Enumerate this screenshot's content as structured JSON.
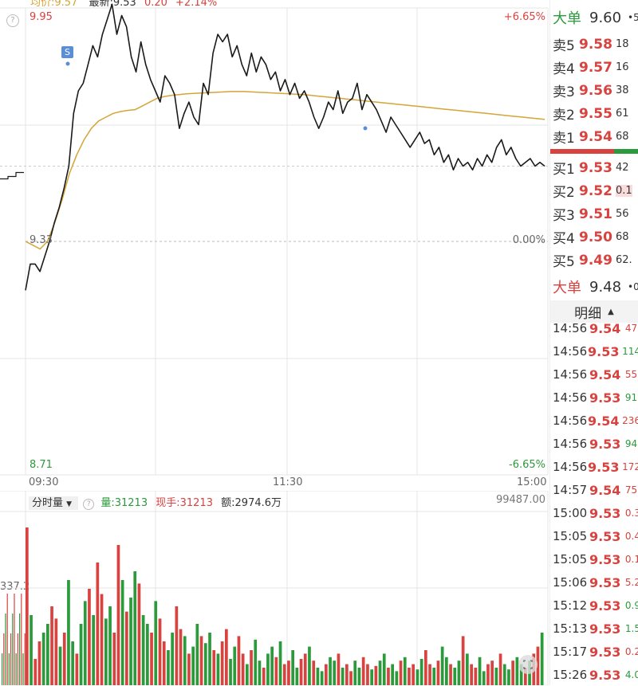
{
  "header": {
    "avg_label": "均价:9.57",
    "latest_label": "最新:9.53",
    "change": "0.20",
    "change_pct": "+2.14%"
  },
  "chart_data": {
    "type": "line",
    "y_top_label": "9.95",
    "y_mid_label": "9.33",
    "y_bottom_label": "8.71",
    "pct_top_label": "+6.65%",
    "pct_mid_label": "0.00%",
    "pct_bottom_label": "-6.65%",
    "ylim": [
      8.71,
      9.95
    ],
    "prev_close": 9.33,
    "x_ticks": [
      "09:30",
      "11:30",
      "15:00"
    ],
    "series": [
      {
        "values": [
          9.2,
          9.27,
          9.27,
          9.25,
          9.29,
          9.33,
          9.38,
          9.42,
          9.47,
          9.53,
          9.67,
          9.73,
          9.75,
          9.8,
          9.85,
          9.82,
          9.88,
          9.92,
          9.96,
          9.88,
          9.93,
          9.9,
          9.82,
          9.78,
          9.86,
          9.8,
          9.76,
          9.73,
          9.7,
          9.77,
          9.75,
          9.72,
          9.63,
          9.67,
          9.7,
          9.66,
          9.64,
          9.75,
          9.72,
          9.83,
          9.88,
          9.86,
          9.88,
          9.82,
          9.85,
          9.8,
          9.77,
          9.83,
          9.78,
          9.82,
          9.8,
          9.76,
          9.78,
          9.73,
          9.76,
          9.72,
          9.75,
          9.71,
          9.73,
          9.7,
          9.66,
          9.63,
          9.66,
          9.7,
          9.68,
          9.73,
          9.67,
          9.7,
          9.71,
          9.75,
          9.68,
          9.72,
          9.7,
          9.68,
          9.65,
          9.62,
          9.66,
          9.64,
          9.62,
          9.6,
          9.58,
          9.6,
          9.62,
          9.59,
          9.6,
          9.56,
          9.58,
          9.54,
          9.56,
          9.52,
          9.55,
          9.53,
          9.54,
          9.52,
          9.55,
          9.53,
          9.56,
          9.54,
          9.58,
          9.6,
          9.56,
          9.58,
          9.55,
          9.53,
          9.54,
          9.55,
          9.53,
          9.54,
          9.53
        ]
      },
      {
        "values": [
          9.33,
          9.32,
          9.31,
          9.33,
          9.38,
          9.44,
          9.51,
          9.56,
          9.6,
          9.63,
          9.65,
          9.66,
          9.67,
          9.675,
          9.678,
          9.68,
          9.69,
          9.7,
          9.71,
          9.715,
          9.718,
          9.72,
          9.722,
          9.723,
          9.724,
          9.725,
          9.726,
          9.727,
          9.728,
          9.728,
          9.728,
          9.727,
          9.726,
          9.725,
          9.724,
          9.723,
          9.722,
          9.721,
          9.72,
          9.718,
          9.716,
          9.714,
          9.712,
          9.71,
          9.708,
          9.706,
          9.704,
          9.702,
          9.7,
          9.698,
          9.696,
          9.694,
          9.692,
          9.69,
          9.688,
          9.686,
          9.684,
          9.682,
          9.68,
          9.678,
          9.676,
          9.674,
          9.672,
          9.67,
          9.668,
          9.666,
          9.664,
          9.662,
          9.66,
          9.658,
          9.656,
          9.654
        ]
      }
    ]
  },
  "volume_panel": {
    "mode_label": "分时量",
    "vol_label": "量:31213",
    "hand_label": "现手:31213",
    "amount_label": "额:2974.6万",
    "max_label": "99487.00",
    "side_label": "337.2",
    "bars": [
      90,
      40,
      15,
      25,
      30,
      35,
      45,
      38,
      22,
      30,
      60,
      25,
      18,
      35,
      48,
      55,
      40,
      70,
      52,
      38,
      45,
      30,
      80,
      60,
      42,
      50,
      65,
      58,
      40,
      35,
      30,
      48,
      38,
      25,
      20,
      30,
      45,
      32,
      28,
      18,
      22,
      35,
      28,
      24,
      30,
      20,
      18,
      25,
      32,
      15,
      22,
      28,
      18,
      12,
      20,
      26,
      14,
      10,
      18,
      22,
      16,
      25,
      12,
      14,
      20,
      10,
      15,
      18,
      22,
      14,
      10,
      8,
      12,
      16,
      14,
      18,
      10,
      12,
      8,
      14,
      10,
      16,
      12,
      9,
      11,
      14,
      18,
      10,
      12,
      8,
      14,
      16,
      10,
      12,
      9,
      15,
      20,
      12,
      10,
      14,
      22,
      16,
      12,
      10,
      14,
      28,
      18,
      12,
      10,
      16,
      8,
      12,
      14,
      10,
      18,
      12,
      9,
      14,
      16,
      12,
      10,
      14,
      18,
      22,
      30
    ]
  },
  "orderbook": {
    "big_order_label": "大单",
    "big_order_price": "9.60",
    "big_order_extra": "•5",
    "asks": [
      {
        "label": "卖5",
        "price": "9.58",
        "amount": "18"
      },
      {
        "label": "卖4",
        "price": "9.57",
        "amount": "16"
      },
      {
        "label": "卖3",
        "price": "9.56",
        "amount": "38"
      },
      {
        "label": "卖2",
        "price": "9.55",
        "amount": "61"
      },
      {
        "label": "卖1",
        "price": "9.54",
        "amount": "68"
      }
    ],
    "bids": [
      {
        "label": "买1",
        "price": "9.53",
        "amount": "42"
      },
      {
        "label": "买2",
        "price": "9.52",
        "amount": "0.1"
      },
      {
        "label": "买3",
        "price": "9.51",
        "amount": "56"
      },
      {
        "label": "买4",
        "price": "9.50",
        "amount": "68"
      },
      {
        "label": "买5",
        "price": "9.49",
        "amount": "62."
      }
    ],
    "big_order2_label": "大单",
    "big_order2_price": "9.48",
    "big_order2_extra": "•0"
  },
  "detail": {
    "tab_label": "明细",
    "sort_icon": "triangle-up-icon",
    "trades": [
      {
        "time": "14:56",
        "price": "9.54",
        "vol": "47.",
        "dir": "red"
      },
      {
        "time": "14:56",
        "price": "9.53",
        "vol": "114",
        "dir": "green"
      },
      {
        "time": "14:56",
        "price": "9.54",
        "vol": "55.",
        "dir": "red"
      },
      {
        "time": "14:56",
        "price": "9.53",
        "vol": "91.",
        "dir": "green"
      },
      {
        "time": "14:56",
        "price": "9.54",
        "vol": "236",
        "dir": "red"
      },
      {
        "time": "14:56",
        "price": "9.53",
        "vol": "94.",
        "dir": "green"
      },
      {
        "time": "14:56",
        "price": "9.53",
        "vol": "172",
        "dir": "red"
      },
      {
        "time": "14:57",
        "price": "9.54",
        "vol": "75.",
        "dir": "red"
      },
      {
        "time": "15:00",
        "price": "9.53",
        "vol": "0.3",
        "dir": "red"
      },
      {
        "time": "15:05",
        "price": "9.53",
        "vol": "0.4",
        "dir": "red"
      },
      {
        "time": "15:05",
        "price": "9.53",
        "vol": "0.1",
        "dir": "red"
      },
      {
        "time": "15:06",
        "price": "9.53",
        "vol": "5.2",
        "dir": "red"
      },
      {
        "time": "15:12",
        "price": "9.53",
        "vol": "0.9",
        "dir": "green"
      },
      {
        "time": "15:13",
        "price": "9.53",
        "vol": "1.5",
        "dir": "green"
      },
      {
        "time": "15:17",
        "price": "9.53",
        "vol": "0.2",
        "dir": "red"
      },
      {
        "time": "15:26",
        "price": "9.53",
        "vol": "4.0",
        "dir": "green"
      }
    ]
  },
  "colors": {
    "up": "#d8423f",
    "down": "#2a9a3a",
    "price_line": "#1a1a1a",
    "avg_line": "#d4a537",
    "grid": "#e6e6e6"
  }
}
